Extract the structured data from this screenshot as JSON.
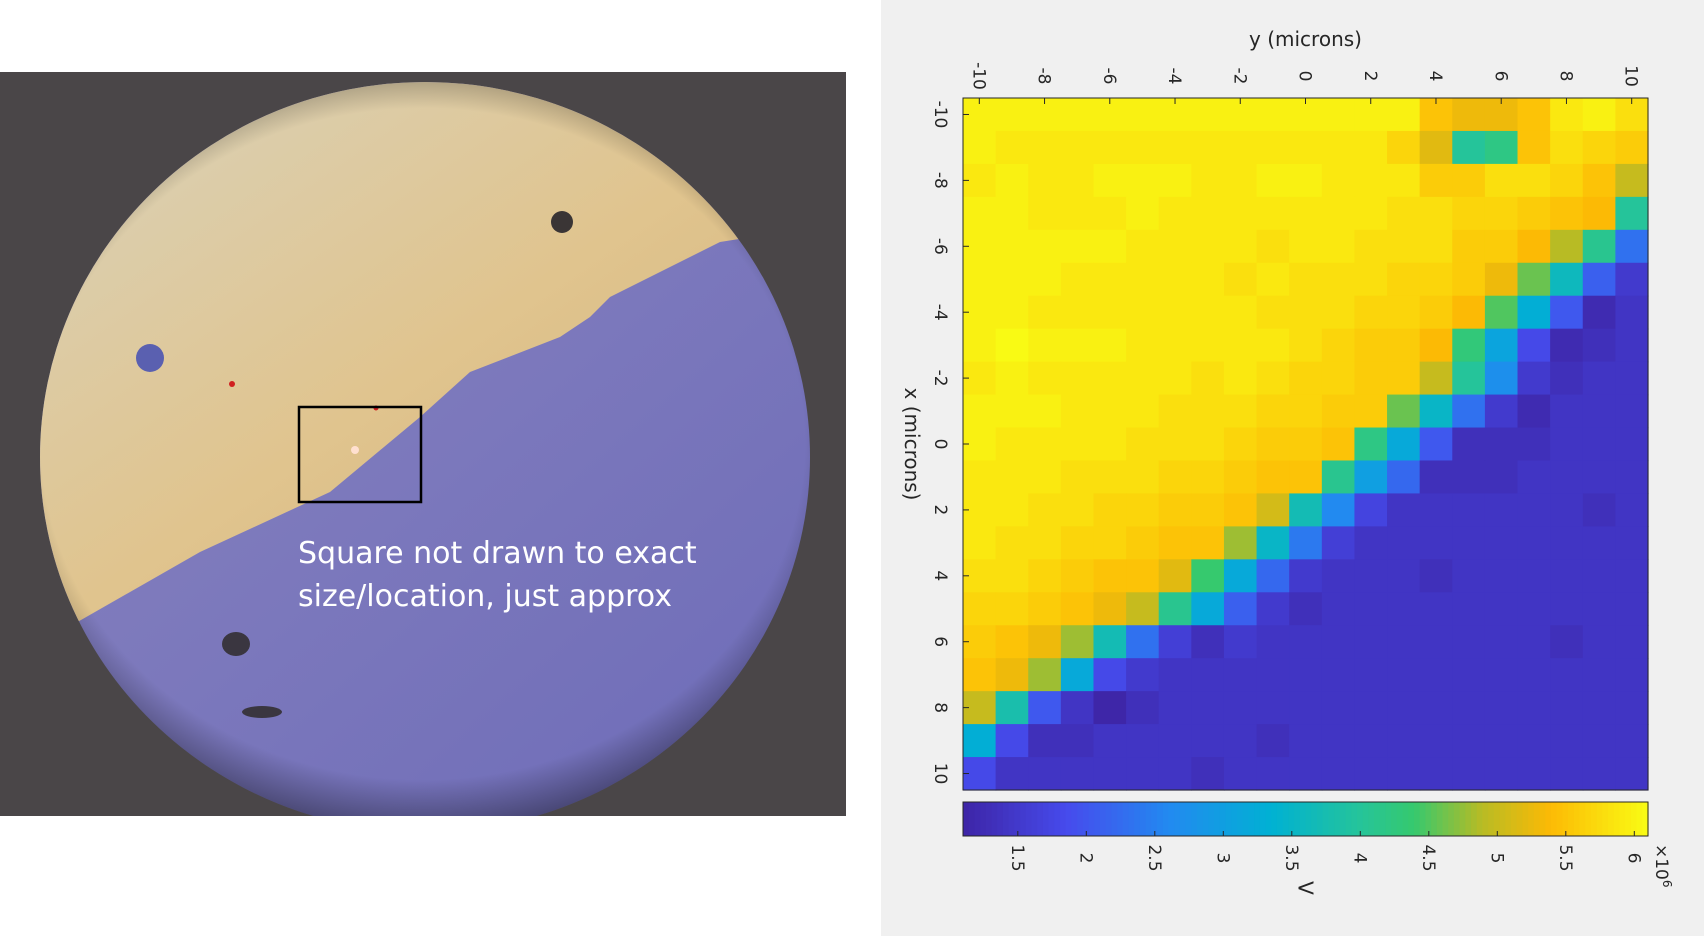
{
  "photo": {
    "caption": "Square not drawn to exact size/location, just approx"
  },
  "chart_data": {
    "type": "heatmap",
    "title": "",
    "xlabel": "x (microns)",
    "ylabel": "y (microns)",
    "x_range": [
      -10,
      10
    ],
    "y_range": [
      -10,
      10
    ],
    "x_ticks": [
      "-10",
      "-8",
      "-6",
      "-4",
      "-2",
      "0",
      "2",
      "4",
      "6",
      "8",
      "10"
    ],
    "y_ticks": [
      "-10",
      "-8",
      "-6",
      "-4",
      "-2",
      "0",
      "2",
      "4",
      "6",
      "8",
      "10"
    ],
    "colorbar": {
      "label": "V",
      "exponent": "×10",
      "exponent_power": "6",
      "range": [
        1.1,
        6.1
      ],
      "ticks": [
        "1.5",
        "2",
        "2.5",
        "3",
        "3.5",
        "4",
        "4.5",
        "5",
        "5.5",
        "6"
      ]
    },
    "orientation": "rotated 90° clockwise: x axis runs vertically (left side), y axis runs horizontally (top)",
    "grid_size": 21,
    "values_units": "V (×10^6)",
    "values": [
      [
        6.0,
        6.0,
        6.0,
        6.0,
        6.0,
        6.0,
        6.0,
        6.0,
        6.0,
        6.0,
        6.0,
        6.0,
        6.0,
        6.0,
        5.5,
        5.3,
        5.3,
        5.5,
        5.9,
        6.0,
        5.8
      ],
      [
        6.0,
        5.9,
        5.9,
        5.9,
        5.9,
        5.9,
        5.9,
        5.9,
        5.9,
        5.9,
        5.9,
        5.9,
        5.9,
        5.7,
        5.2,
        4.0,
        4.2,
        5.5,
        5.8,
        5.7,
        5.6
      ],
      [
        5.9,
        6.0,
        5.9,
        5.9,
        6.0,
        6.0,
        6.0,
        5.9,
        5.9,
        6.0,
        6.0,
        5.9,
        5.9,
        5.9,
        5.6,
        5.6,
        5.8,
        5.8,
        5.7,
        5.5,
        5.0
      ],
      [
        6.0,
        6.0,
        5.9,
        5.9,
        5.9,
        6.0,
        5.9,
        5.9,
        5.9,
        5.9,
        5.9,
        5.9,
        5.9,
        5.8,
        5.8,
        5.7,
        5.7,
        5.6,
        5.5,
        5.4,
        4.0
      ],
      [
        6.0,
        6.0,
        6.0,
        6.0,
        6.0,
        5.9,
        5.9,
        5.9,
        5.9,
        5.8,
        5.9,
        5.9,
        5.8,
        5.8,
        5.8,
        5.6,
        5.6,
        5.4,
        4.9,
        4.1,
        2.3
      ],
      [
        6.0,
        6.0,
        6.0,
        5.9,
        5.9,
        5.9,
        5.9,
        5.9,
        5.8,
        5.9,
        5.8,
        5.8,
        5.8,
        5.7,
        5.7,
        5.6,
        5.3,
        4.6,
        3.6,
        2.1,
        1.5
      ],
      [
        6.0,
        6.0,
        5.9,
        5.9,
        5.9,
        5.9,
        5.9,
        5.9,
        5.9,
        5.8,
        5.8,
        5.8,
        5.7,
        5.7,
        5.6,
        5.4,
        4.5,
        3.3,
        2.0,
        1.2,
        1.4
      ],
      [
        6.0,
        6.1,
        6.0,
        6.0,
        6.0,
        5.9,
        5.9,
        5.9,
        5.9,
        5.9,
        5.8,
        5.7,
        5.6,
        5.6,
        5.4,
        4.3,
        3.1,
        1.8,
        1.2,
        1.3,
        1.4
      ],
      [
        5.9,
        6.0,
        5.9,
        5.9,
        5.9,
        5.9,
        5.9,
        5.8,
        5.9,
        5.8,
        5.7,
        5.7,
        5.6,
        5.6,
        5.0,
        4.0,
        2.7,
        1.5,
        1.3,
        1.4,
        1.4
      ],
      [
        6.0,
        6.0,
        6.0,
        5.9,
        5.9,
        5.9,
        5.8,
        5.8,
        5.8,
        5.7,
        5.7,
        5.6,
        5.6,
        4.6,
        3.5,
        2.3,
        1.5,
        1.2,
        1.4,
        1.4,
        1.4
      ],
      [
        6.0,
        5.9,
        5.9,
        5.9,
        5.9,
        5.8,
        5.8,
        5.8,
        5.7,
        5.6,
        5.6,
        5.5,
        4.2,
        3.2,
        2.0,
        1.3,
        1.3,
        1.3,
        1.4,
        1.4,
        1.4
      ],
      [
        5.9,
        5.9,
        5.9,
        5.8,
        5.8,
        5.8,
        5.7,
        5.7,
        5.6,
        5.5,
        5.5,
        4.1,
        3.0,
        2.2,
        1.3,
        1.3,
        1.3,
        1.4,
        1.4,
        1.4,
        1.4
      ],
      [
        5.9,
        5.9,
        5.8,
        5.8,
        5.7,
        5.7,
        5.6,
        5.6,
        5.5,
        5.1,
        3.7,
        2.6,
        1.7,
        1.4,
        1.4,
        1.4,
        1.4,
        1.4,
        1.4,
        1.3,
        1.4
      ],
      [
        5.9,
        5.8,
        5.8,
        5.7,
        5.7,
        5.6,
        5.5,
        5.5,
        4.8,
        3.5,
        2.4,
        1.6,
        1.4,
        1.4,
        1.4,
        1.4,
        1.4,
        1.4,
        1.4,
        1.4,
        1.4
      ],
      [
        5.8,
        5.8,
        5.7,
        5.6,
        5.5,
        5.5,
        5.2,
        4.4,
        3.2,
        2.2,
        1.5,
        1.4,
        1.4,
        1.4,
        1.3,
        1.4,
        1.4,
        1.4,
        1.4,
        1.4,
        1.4
      ],
      [
        5.7,
        5.7,
        5.6,
        5.5,
        5.3,
        5.0,
        4.1,
        3.2,
        2.1,
        1.5,
        1.3,
        1.4,
        1.4,
        1.4,
        1.4,
        1.4,
        1.4,
        1.4,
        1.4,
        1.4,
        1.4
      ],
      [
        5.6,
        5.5,
        5.3,
        4.8,
        3.7,
        2.3,
        1.6,
        1.3,
        1.5,
        1.4,
        1.4,
        1.4,
        1.4,
        1.4,
        1.4,
        1.4,
        1.4,
        1.4,
        1.3,
        1.4,
        1.4
      ],
      [
        5.5,
        5.3,
        4.8,
        3.2,
        1.8,
        1.5,
        1.4,
        1.4,
        1.4,
        1.4,
        1.4,
        1.4,
        1.4,
        1.4,
        1.4,
        1.4,
        1.4,
        1.4,
        1.4,
        1.4,
        1.4
      ],
      [
        5.0,
        3.8,
        2.0,
        1.4,
        1.1,
        1.3,
        1.4,
        1.4,
        1.4,
        1.4,
        1.4,
        1.4,
        1.4,
        1.4,
        1.4,
        1.4,
        1.4,
        1.4,
        1.4,
        1.4,
        1.4
      ],
      [
        3.3,
        1.8,
        1.3,
        1.3,
        1.4,
        1.4,
        1.4,
        1.4,
        1.4,
        1.3,
        1.4,
        1.4,
        1.4,
        1.4,
        1.4,
        1.4,
        1.4,
        1.4,
        1.4,
        1.4,
        1.4
      ],
      [
        1.8,
        1.4,
        1.4,
        1.4,
        1.4,
        1.4,
        1.4,
        1.3,
        1.4,
        1.4,
        1.4,
        1.4,
        1.4,
        1.4,
        1.4,
        1.4,
        1.4,
        1.4,
        1.4,
        1.4,
        1.4
      ]
    ]
  }
}
